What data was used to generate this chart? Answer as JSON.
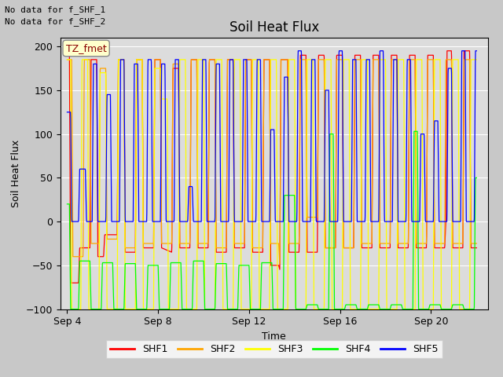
{
  "title": "Soil Heat Flux",
  "xlabel": "Time",
  "ylabel": "Soil Heat Flux",
  "ylim": [
    -100,
    210
  ],
  "yticks": [
    -100,
    -50,
    0,
    50,
    100,
    150,
    200
  ],
  "note1": "No data for f_SHF_1",
  "note2": "No data for f_SHF_2",
  "tz_label": "TZ_fmet",
  "legend_labels": [
    "SHF1",
    "SHF2",
    "SHF3",
    "SHF4",
    "SHF5"
  ],
  "colors": {
    "SHF1": "#FF0000",
    "SHF2": "#FFA500",
    "SHF3": "#FFFF00",
    "SHF4": "#00FF00",
    "SHF5": "#0000FF"
  },
  "x_tick_labels": [
    "Sep 4",
    "Sep 8",
    "Sep 12",
    "Sep 16",
    "Sep 20"
  ],
  "x_tick_positions": [
    0,
    4,
    8,
    12,
    16
  ],
  "xlim": [
    -0.3,
    18.5
  ],
  "figsize": [
    6.4,
    4.8
  ],
  "dpi": 100
}
